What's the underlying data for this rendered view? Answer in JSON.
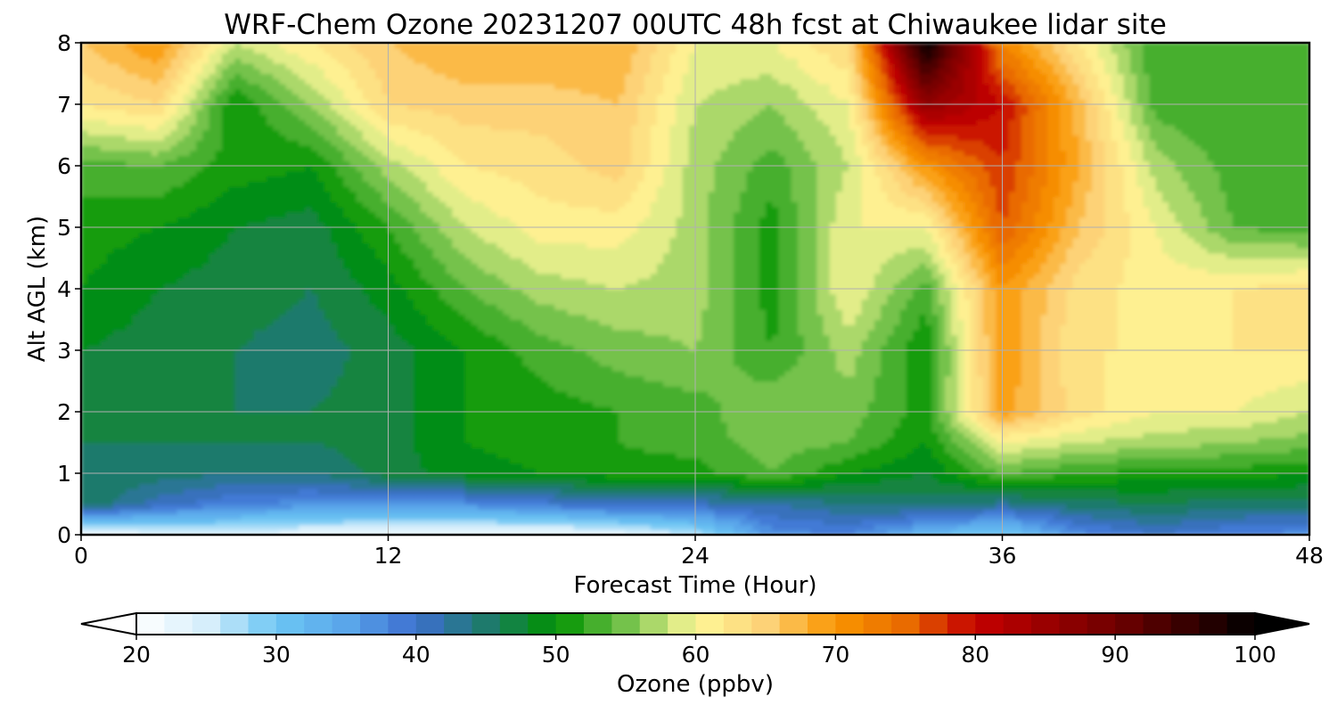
{
  "chart_data": {
    "type": "heatmap",
    "subtype": "filled-contour time-height cross-section",
    "title": "WRF-Chem Ozone  20231207 00UTC 48h fcst at Chiwaukee lidar site",
    "xlabel": "Forecast Time (Hour)",
    "ylabel": "Alt AGL (km)",
    "xlim": [
      0,
      48
    ],
    "ylim": [
      0,
      8
    ],
    "xticks": [
      "0",
      "12",
      "24",
      "36",
      "48"
    ],
    "yticks": [
      "0",
      "1",
      "2",
      "3",
      "4",
      "5",
      "6",
      "7",
      "8"
    ],
    "grid": true,
    "colorbar": {
      "label": "Ozone  (ppbv)",
      "orientation": "horizontal",
      "placement": "bottom",
      "range": [
        20,
        100
      ],
      "ticks": [
        "20",
        "30",
        "40",
        "50",
        "60",
        "70",
        "80",
        "90",
        "100"
      ],
      "extend": "both",
      "colors": [
        [
          20,
          "#ffffff"
        ],
        [
          25,
          "#d6eefb"
        ],
        [
          30,
          "#6cc6f4"
        ],
        [
          35,
          "#5aa6ea"
        ],
        [
          40,
          "#3d6fd0"
        ],
        [
          45,
          "#1e7a6c"
        ],
        [
          50,
          "#009200"
        ],
        [
          55,
          "#74c24b"
        ],
        [
          60,
          "#fef898"
        ],
        [
          65,
          "#fdd277"
        ],
        [
          70,
          "#f99500"
        ],
        [
          75,
          "#e96b00"
        ],
        [
          80,
          "#c40000"
        ],
        [
          90,
          "#700000"
        ],
        [
          100,
          "#000000"
        ]
      ]
    },
    "x_hours": [
      0,
      3,
      6,
      9,
      12,
      15,
      18,
      21,
      24,
      27,
      30,
      33,
      36,
      39,
      42,
      45,
      48
    ],
    "y_km": [
      0,
      0.5,
      1,
      1.5,
      2,
      3,
      4,
      5,
      6,
      7,
      8
    ],
    "ozone_ppbv": [
      [
        20,
        23,
        24,
        22,
        21,
        21,
        21,
        22,
        26,
        37,
        38,
        32,
        29,
        37,
        40,
        38,
        37
      ],
      [
        46,
        41,
        38,
        37,
        37,
        37,
        39,
        41,
        41,
        42,
        44,
        45,
        43,
        45,
        46,
        45,
        45
      ],
      [
        46,
        45,
        44,
        44,
        47,
        49,
        50,
        51,
        51,
        54,
        50,
        48,
        54,
        52,
        51,
        51,
        50
      ],
      [
        46,
        46,
        46,
        46,
        47,
        50,
        51,
        52,
        53,
        55,
        54,
        50,
        60,
        58,
        57,
        56,
        55
      ],
      [
        46,
        46,
        46,
        46,
        47,
        50,
        51,
        52,
        53,
        56,
        55,
        51,
        69,
        63,
        60,
        60,
        58
      ],
      [
        48,
        47,
        46,
        45,
        47,
        50,
        53,
        55,
        56,
        52,
        57,
        50,
        70,
        62,
        62,
        62,
        62
      ],
      [
        50,
        48,
        47,
        46,
        49,
        54,
        57,
        58,
        57,
        51,
        60,
        53,
        70,
        63,
        61,
        62,
        63
      ],
      [
        51,
        50,
        48,
        47,
        52,
        58,
        61,
        61,
        57,
        51,
        60,
        60,
        76,
        66,
        60,
        54,
        53
      ],
      [
        53,
        54,
        51,
        50,
        57,
        62,
        63,
        65,
        57,
        53,
        58,
        70,
        78,
        68,
        57,
        53,
        52
      ],
      [
        62,
        64,
        50,
        56,
        64,
        65,
        65,
        66,
        58,
        56,
        60,
        86,
        80,
        67,
        53,
        52,
        52
      ],
      [
        66,
        70,
        58,
        62,
        66,
        68,
        68,
        68,
        60,
        60,
        64,
        100,
        72,
        62,
        52,
        52,
        52
      ]
    ]
  }
}
